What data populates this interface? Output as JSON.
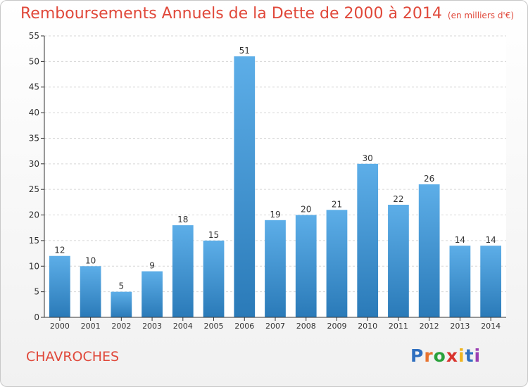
{
  "header": {
    "title": "Remboursements Annuels de la Dette de 2000 à 2014",
    "subtitle": "(en milliers d'€)"
  },
  "footer": {
    "place": "CHAVROCHES",
    "logo": [
      "P",
      "r",
      "o",
      "x",
      "i",
      "t",
      "i"
    ]
  },
  "colors": {
    "bar_top": "#5daee8",
    "bar_bottom": "#2a7ab8",
    "title": "#e0483a",
    "grid": "#d6d6d6"
  },
  "chart_data": {
    "type": "bar",
    "title": "Remboursements Annuels de la Dette de 2000 à 2014",
    "xlabel": "",
    "ylabel": "",
    "categories": [
      "2000",
      "2001",
      "2002",
      "2003",
      "2004",
      "2005",
      "2006",
      "2007",
      "2008",
      "2009",
      "2010",
      "2011",
      "2012",
      "2013",
      "2014"
    ],
    "values": [
      12,
      10,
      5,
      9,
      18,
      15,
      51,
      19,
      20,
      21,
      30,
      22,
      26,
      14,
      14
    ],
    "ylim": [
      0,
      55
    ],
    "yticks": [
      0,
      5,
      10,
      15,
      20,
      25,
      30,
      35,
      40,
      45,
      50,
      55
    ],
    "grid": true,
    "legend": "none"
  }
}
